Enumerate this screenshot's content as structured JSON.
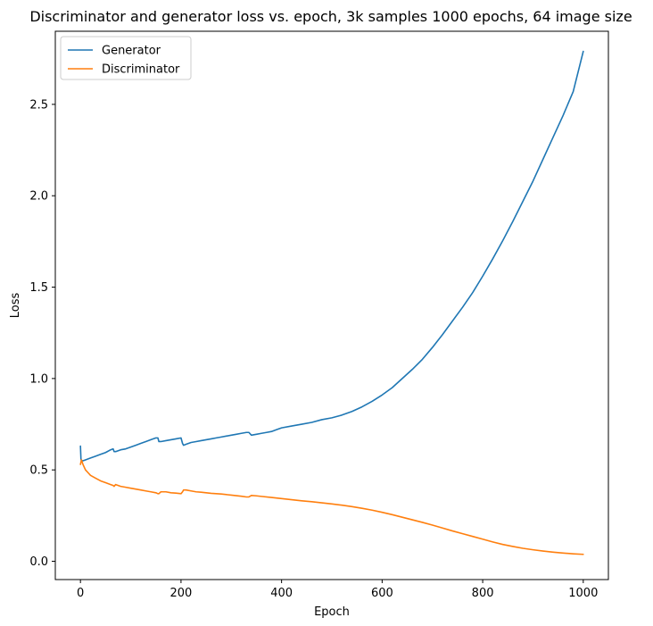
{
  "chart_data": {
    "type": "line",
    "title": "Discriminator and generator loss vs. epoch, 3k samples 1000 epochs, 64 image size",
    "xlabel": "Epoch",
    "ylabel": "Loss",
    "xlim": [
      -50,
      1050
    ],
    "ylim": [
      -0.1,
      2.9
    ],
    "xticks": [
      0,
      200,
      400,
      600,
      800,
      1000
    ],
    "xtick_labels": [
      "0",
      "200",
      "400",
      "600",
      "800",
      "1000"
    ],
    "yticks": [
      0.0,
      0.5,
      1.0,
      1.5,
      2.0,
      2.5
    ],
    "ytick_labels": [
      "0.0",
      "0.5",
      "1.0",
      "1.5",
      "2.0",
      "2.5"
    ],
    "grid": false,
    "legend_position": "upper-left",
    "series": [
      {
        "name": "Generator",
        "color": "#1f77b4",
        "x": [
          0,
          1,
          2,
          5,
          10,
          20,
          30,
          40,
          50,
          60,
          65,
          67,
          70,
          75,
          80,
          90,
          100,
          110,
          120,
          130,
          140,
          150,
          154,
          156,
          160,
          170,
          180,
          190,
          200,
          203,
          205,
          210,
          220,
          230,
          240,
          250,
          260,
          270,
          280,
          290,
          300,
          310,
          320,
          330,
          335,
          340,
          350,
          360,
          370,
          380,
          390,
          400,
          420,
          440,
          460,
          480,
          500,
          520,
          540,
          560,
          580,
          600,
          620,
          640,
          660,
          680,
          700,
          720,
          740,
          760,
          780,
          800,
          820,
          840,
          860,
          880,
          900,
          920,
          940,
          960,
          980,
          1000
        ],
        "y": [
          0.63,
          0.56,
          0.55,
          0.55,
          0.555,
          0.565,
          0.575,
          0.585,
          0.595,
          0.61,
          0.615,
          0.6,
          0.6,
          0.605,
          0.61,
          0.615,
          0.625,
          0.635,
          0.645,
          0.655,
          0.665,
          0.675,
          0.675,
          0.655,
          0.655,
          0.66,
          0.665,
          0.67,
          0.675,
          0.645,
          0.635,
          0.64,
          0.65,
          0.655,
          0.66,
          0.665,
          0.67,
          0.675,
          0.68,
          0.685,
          0.69,
          0.695,
          0.7,
          0.705,
          0.705,
          0.69,
          0.695,
          0.7,
          0.705,
          0.71,
          0.72,
          0.73,
          0.74,
          0.75,
          0.76,
          0.775,
          0.785,
          0.8,
          0.82,
          0.845,
          0.875,
          0.91,
          0.95,
          1.0,
          1.05,
          1.105,
          1.17,
          1.24,
          1.315,
          1.39,
          1.47,
          1.56,
          1.655,
          1.755,
          1.86,
          1.97,
          2.08,
          2.2,
          2.32,
          2.44,
          2.57,
          2.79
        ]
      },
      {
        "name": "Discriminator",
        "color": "#ff7f0e",
        "x": [
          0,
          2,
          5,
          10,
          15,
          20,
          30,
          40,
          50,
          60,
          65,
          67,
          70,
          75,
          80,
          90,
          100,
          110,
          120,
          130,
          140,
          150,
          154,
          156,
          160,
          170,
          180,
          190,
          200,
          203,
          205,
          210,
          220,
          230,
          240,
          250,
          260,
          280,
          300,
          320,
          330,
          335,
          340,
          350,
          360,
          380,
          400,
          420,
          440,
          460,
          480,
          500,
          520,
          540,
          560,
          580,
          600,
          620,
          640,
          660,
          680,
          700,
          720,
          740,
          760,
          780,
          800,
          820,
          840,
          860,
          880,
          900,
          920,
          940,
          960,
          980,
          1000
        ],
        "y": [
          0.53,
          0.555,
          0.53,
          0.5,
          0.485,
          0.47,
          0.455,
          0.44,
          0.43,
          0.42,
          0.415,
          0.41,
          0.42,
          0.415,
          0.41,
          0.405,
          0.4,
          0.395,
          0.39,
          0.385,
          0.38,
          0.375,
          0.37,
          0.37,
          0.38,
          0.38,
          0.375,
          0.373,
          0.37,
          0.38,
          0.39,
          0.39,
          0.385,
          0.38,
          0.378,
          0.375,
          0.372,
          0.368,
          0.362,
          0.356,
          0.352,
          0.352,
          0.36,
          0.358,
          0.355,
          0.349,
          0.343,
          0.337,
          0.331,
          0.326,
          0.32,
          0.314,
          0.307,
          0.299,
          0.29,
          0.28,
          0.268,
          0.255,
          0.241,
          0.227,
          0.213,
          0.198,
          0.182,
          0.166,
          0.151,
          0.136,
          0.121,
          0.106,
          0.092,
          0.081,
          0.071,
          0.063,
          0.056,
          0.05,
          0.045,
          0.041,
          0.038
        ]
      }
    ]
  }
}
